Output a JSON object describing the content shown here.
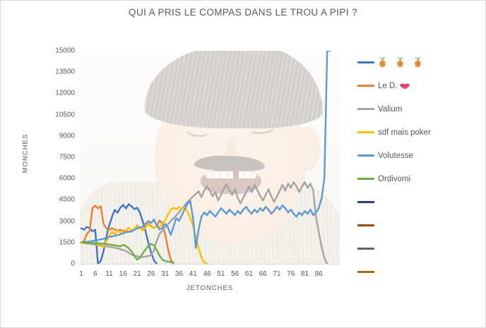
{
  "title": "QUI A PRIS LE COMPAS DANS LE TROU A PIPI ?",
  "chart_data": {
    "type": "line",
    "title": "QUI A PRIS LE COMPAS DANS LE TROU A PIPI ?",
    "xlabel": "JETONCHES",
    "ylabel": "MONCHES",
    "ylim": [
      0,
      15000
    ],
    "y_ticks": [
      0,
      1500,
      3000,
      4500,
      6000,
      7500,
      9000,
      10500,
      12000,
      13500,
      15000
    ],
    "x_ticks": [
      1,
      6,
      11,
      16,
      21,
      26,
      31,
      36,
      41,
      46,
      51,
      56,
      61,
      66,
      71,
      76,
      81,
      86
    ],
    "x_slots": 93,
    "grid": false,
    "legend_position": "right",
    "background": "faded photo of laughing man (risitas meme) behind plot area",
    "series": [
      {
        "name": "🍍 🍍 🍍",
        "label_text": "",
        "icons": [
          "pineapple-icon",
          "pineapple-icon",
          "pineapple-icon"
        ],
        "color": "#4472C4",
        "points": [
          [
            1,
            2500
          ],
          [
            2,
            2400
          ],
          [
            3,
            2600
          ],
          [
            4,
            2500
          ],
          [
            5,
            2300
          ],
          [
            6,
            2400
          ],
          [
            7,
            0
          ],
          [
            8,
            200
          ],
          [
            9,
            900
          ],
          [
            10,
            1900
          ],
          [
            11,
            2700
          ],
          [
            12,
            3300
          ],
          [
            13,
            3800
          ],
          [
            14,
            3600
          ],
          [
            15,
            3950
          ],
          [
            16,
            4150
          ],
          [
            17,
            3900
          ],
          [
            18,
            4200
          ],
          [
            19,
            4050
          ],
          [
            20,
            3850
          ],
          [
            21,
            3950
          ],
          [
            22,
            3600
          ],
          [
            23,
            3000
          ],
          [
            24,
            2300
          ],
          [
            25,
            1500
          ],
          [
            26,
            800
          ],
          [
            27,
            250
          ],
          [
            28,
            0
          ]
        ]
      },
      {
        "name": "Le D. 👄",
        "label_text": "Le D.",
        "icons": [
          "lips-icon"
        ],
        "color": "#ED7D31",
        "points": [
          [
            1,
            1500
          ],
          [
            2,
            1600
          ],
          [
            3,
            2100
          ],
          [
            4,
            2300
          ],
          [
            5,
            3900
          ],
          [
            6,
            4100
          ],
          [
            7,
            3900
          ],
          [
            8,
            4050
          ],
          [
            9,
            2800
          ],
          [
            10,
            2500
          ],
          [
            11,
            2400
          ],
          [
            12,
            2500
          ],
          [
            13,
            2400
          ],
          [
            14,
            2350
          ],
          [
            15,
            2400
          ],
          [
            16,
            2300
          ],
          [
            17,
            2350
          ],
          [
            18,
            2250
          ],
          [
            19,
            2300
          ],
          [
            20,
            2450
          ],
          [
            21,
            2700
          ],
          [
            22,
            2500
          ],
          [
            23,
            2400
          ],
          [
            24,
            2600
          ],
          [
            25,
            2850
          ],
          [
            26,
            2650
          ],
          [
            27,
            2500
          ],
          [
            28,
            2650
          ],
          [
            29,
            3050
          ],
          [
            30,
            2850
          ],
          [
            31,
            2100
          ],
          [
            32,
            1100
          ],
          [
            33,
            300
          ],
          [
            34,
            0
          ]
        ]
      },
      {
        "name": "Valium",
        "label_text": "Valium",
        "icons": [],
        "color": "#A5A5A5",
        "points": [
          [
            1,
            1500
          ],
          [
            3,
            1430
          ],
          [
            5,
            1380
          ],
          [
            7,
            1320
          ],
          [
            9,
            1260
          ],
          [
            11,
            1200
          ],
          [
            13,
            1130
          ],
          [
            15,
            1030
          ],
          [
            17,
            900
          ],
          [
            19,
            650
          ],
          [
            21,
            530
          ],
          [
            23,
            480
          ],
          [
            25,
            540
          ],
          [
            26,
            620
          ],
          [
            27,
            950
          ],
          [
            28,
            1600
          ],
          [
            29,
            2100
          ],
          [
            31,
            2550
          ],
          [
            33,
            3000
          ],
          [
            35,
            3400
          ],
          [
            37,
            3850
          ],
          [
            39,
            4350
          ],
          [
            41,
            4750
          ],
          [
            43,
            5100
          ],
          [
            44,
            4700
          ],
          [
            45,
            5150
          ],
          [
            46,
            5450
          ],
          [
            47,
            5150
          ],
          [
            48,
            4750
          ],
          [
            49,
            5050
          ],
          [
            50,
            4450
          ],
          [
            51,
            4850
          ],
          [
            52,
            5300
          ],
          [
            53,
            5600
          ],
          [
            54,
            5200
          ],
          [
            55,
            4850
          ],
          [
            56,
            5250
          ],
          [
            57,
            4650
          ],
          [
            58,
            4250
          ],
          [
            59,
            4650
          ],
          [
            60,
            5050
          ],
          [
            61,
            5450
          ],
          [
            62,
            5050
          ],
          [
            63,
            5550
          ],
          [
            64,
            5200
          ],
          [
            65,
            4800
          ],
          [
            66,
            4450
          ],
          [
            67,
            4850
          ],
          [
            68,
            5250
          ],
          [
            69,
            4750
          ],
          [
            70,
            4350
          ],
          [
            71,
            4750
          ],
          [
            72,
            5150
          ],
          [
            73,
            5550
          ],
          [
            74,
            5150
          ],
          [
            75,
            5650
          ],
          [
            76,
            5350
          ],
          [
            77,
            5750
          ],
          [
            78,
            5450
          ],
          [
            79,
            5050
          ],
          [
            80,
            5450
          ],
          [
            81,
            5750
          ],
          [
            82,
            5350
          ],
          [
            83,
            5650
          ],
          [
            84,
            5150
          ],
          [
            85,
            3300
          ],
          [
            86,
            2200
          ],
          [
            87,
            1200
          ],
          [
            88,
            400
          ],
          [
            89,
            0
          ]
        ]
      },
      {
        "name": "sdf mais poker",
        "label_text": "sdf mais poker",
        "icons": [],
        "color": "#FFC000",
        "points": [
          [
            1,
            1500
          ],
          [
            2,
            1450
          ],
          [
            3,
            1520
          ],
          [
            4,
            1480
          ],
          [
            5,
            1500
          ],
          [
            6,
            1430
          ],
          [
            7,
            1380
          ],
          [
            8,
            1250
          ],
          [
            9,
            1180
          ],
          [
            10,
            1600
          ],
          [
            11,
            1950
          ],
          [
            12,
            2250
          ],
          [
            13,
            2050
          ],
          [
            14,
            2350
          ],
          [
            15,
            2200
          ],
          [
            16,
            2100
          ],
          [
            17,
            2350
          ],
          [
            18,
            2550
          ],
          [
            19,
            2350
          ],
          [
            20,
            2450
          ],
          [
            21,
            2650
          ],
          [
            22,
            2500
          ],
          [
            23,
            2350
          ],
          [
            24,
            2550
          ],
          [
            25,
            2800
          ],
          [
            26,
            2600
          ],
          [
            27,
            2500
          ],
          [
            28,
            2700
          ],
          [
            29,
            2600
          ],
          [
            30,
            2800
          ],
          [
            31,
            3050
          ],
          [
            32,
            3450
          ],
          [
            33,
            3800
          ],
          [
            34,
            3950
          ],
          [
            35,
            3850
          ],
          [
            36,
            4000
          ],
          [
            37,
            3850
          ],
          [
            38,
            3950
          ],
          [
            39,
            3700
          ],
          [
            40,
            3250
          ],
          [
            41,
            2700
          ],
          [
            42,
            1900
          ],
          [
            43,
            1100
          ],
          [
            44,
            450
          ],
          [
            45,
            100
          ],
          [
            46,
            0
          ]
        ]
      },
      {
        "name": "Volutesse",
        "label_text": "Volutesse",
        "icons": [],
        "color": "#5B9BD5",
        "points": [
          [
            1,
            1500
          ],
          [
            3,
            1550
          ],
          [
            5,
            1600
          ],
          [
            7,
            1680
          ],
          [
            9,
            1760
          ],
          [
            11,
            1880
          ],
          [
            13,
            1960
          ],
          [
            15,
            2080
          ],
          [
            17,
            2220
          ],
          [
            19,
            2280
          ],
          [
            21,
            2500
          ],
          [
            23,
            2620
          ],
          [
            24,
            2820
          ],
          [
            25,
            3020
          ],
          [
            26,
            2880
          ],
          [
            27,
            3120
          ],
          [
            28,
            2720
          ],
          [
            29,
            2420
          ],
          [
            30,
            2520
          ],
          [
            31,
            2820
          ],
          [
            32,
            2580
          ],
          [
            33,
            2020
          ],
          [
            34,
            2620
          ],
          [
            35,
            3220
          ],
          [
            36,
            3020
          ],
          [
            37,
            3420
          ],
          [
            38,
            3820
          ],
          [
            39,
            4220
          ],
          [
            40,
            4420
          ],
          [
            41,
            3220
          ],
          [
            42,
            1120
          ],
          [
            43,
            2420
          ],
          [
            44,
            3320
          ],
          [
            45,
            3620
          ],
          [
            46,
            3420
          ],
          [
            47,
            3720
          ],
          [
            48,
            3520
          ],
          [
            49,
            3320
          ],
          [
            50,
            3620
          ],
          [
            51,
            3920
          ],
          [
            52,
            3720
          ],
          [
            53,
            3520
          ],
          [
            54,
            3820
          ],
          [
            55,
            3620
          ],
          [
            56,
            3420
          ],
          [
            57,
            3720
          ],
          [
            58,
            3520
          ],
          [
            59,
            3820
          ],
          [
            60,
            4020
          ],
          [
            61,
            3720
          ],
          [
            62,
            3520
          ],
          [
            63,
            3820
          ],
          [
            64,
            3620
          ],
          [
            65,
            3920
          ],
          [
            66,
            3720
          ],
          [
            67,
            4020
          ],
          [
            68,
            3820
          ],
          [
            69,
            3520
          ],
          [
            70,
            3720
          ],
          [
            71,
            4020
          ],
          [
            72,
            3820
          ],
          [
            73,
            4120
          ],
          [
            74,
            3920
          ],
          [
            75,
            3620
          ],
          [
            76,
            3820
          ],
          [
            77,
            3520
          ],
          [
            78,
            3320
          ],
          [
            79,
            3620
          ],
          [
            80,
            3420
          ],
          [
            81,
            3720
          ],
          [
            82,
            3520
          ],
          [
            83,
            3820
          ],
          [
            84,
            3420
          ],
          [
            85,
            3620
          ],
          [
            86,
            3920
          ],
          [
            87,
            4620
          ],
          [
            88,
            6000
          ],
          [
            89,
            15000
          ],
          [
            90,
            15000
          ]
        ]
      },
      {
        "name": "Ordivomi",
        "label_text": "Ordivomi",
        "icons": [],
        "color": "#70AD47",
        "points": [
          [
            1,
            1500
          ],
          [
            3,
            1480
          ],
          [
            5,
            1460
          ],
          [
            7,
            1440
          ],
          [
            9,
            1410
          ],
          [
            11,
            1360
          ],
          [
            13,
            1300
          ],
          [
            15,
            1220
          ],
          [
            16,
            1340
          ],
          [
            17,
            1240
          ],
          [
            18,
            1100
          ],
          [
            19,
            880
          ],
          [
            20,
            560
          ],
          [
            21,
            300
          ],
          [
            22,
            420
          ],
          [
            23,
            720
          ],
          [
            24,
            1020
          ],
          [
            25,
            1260
          ],
          [
            26,
            1400
          ],
          [
            27,
            1300
          ],
          [
            28,
            980
          ],
          [
            29,
            580
          ],
          [
            30,
            300
          ],
          [
            31,
            200
          ],
          [
            32,
            150
          ],
          [
            33,
            120
          ],
          [
            34,
            90
          ]
        ]
      },
      {
        "name": "",
        "label_text": "",
        "icons": [],
        "color": "#264478",
        "points": []
      },
      {
        "name": "",
        "label_text": "",
        "icons": [],
        "color": "#9E480E",
        "points": []
      },
      {
        "name": "",
        "label_text": "",
        "icons": [],
        "color": "#636363",
        "points": []
      },
      {
        "name": "",
        "label_text": "",
        "icons": [],
        "color": "#997300",
        "points": []
      }
    ]
  }
}
